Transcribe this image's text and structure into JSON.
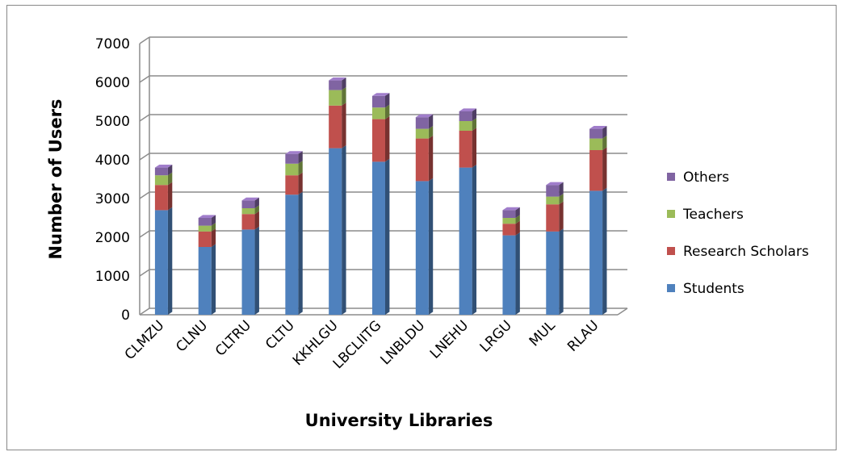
{
  "chart_data": {
    "type": "bar",
    "stacked": true,
    "three_d": true,
    "title": "",
    "xlabel": "University Libraries",
    "ylabel": "Number of Users",
    "ylim": [
      0,
      7000
    ],
    "yticks": [
      0,
      1000,
      2000,
      3000,
      4000,
      5000,
      6000,
      7000
    ],
    "grid": true,
    "legend_position": "right",
    "categories": [
      "CLMZU",
      "CLNU",
      "CLTRU",
      "CLTU",
      "KKHLGU",
      "LBCLIITG",
      "LNBLDU",
      "LNEHU",
      "LRGU",
      "MUL",
      "RLAU"
    ],
    "series": [
      {
        "name": "Students",
        "color": "#4F81BD",
        "values": [
          2700,
          1750,
          2200,
          3100,
          4300,
          3950,
          3450,
          3800,
          2050,
          2150,
          3200
        ]
      },
      {
        "name": "Research Scholars",
        "color": "#C0504D",
        "values": [
          650,
          400,
          400,
          500,
          1100,
          1100,
          1100,
          950,
          300,
          700,
          1050
        ]
      },
      {
        "name": "Teachers",
        "color": "#9BBB59",
        "values": [
          250,
          150,
          150,
          300,
          400,
          300,
          250,
          250,
          150,
          200,
          300
        ]
      },
      {
        "name": "Others",
        "color": "#8064A2",
        "values": [
          200,
          200,
          200,
          250,
          250,
          300,
          300,
          250,
          200,
          300,
          250
        ]
      }
    ]
  }
}
